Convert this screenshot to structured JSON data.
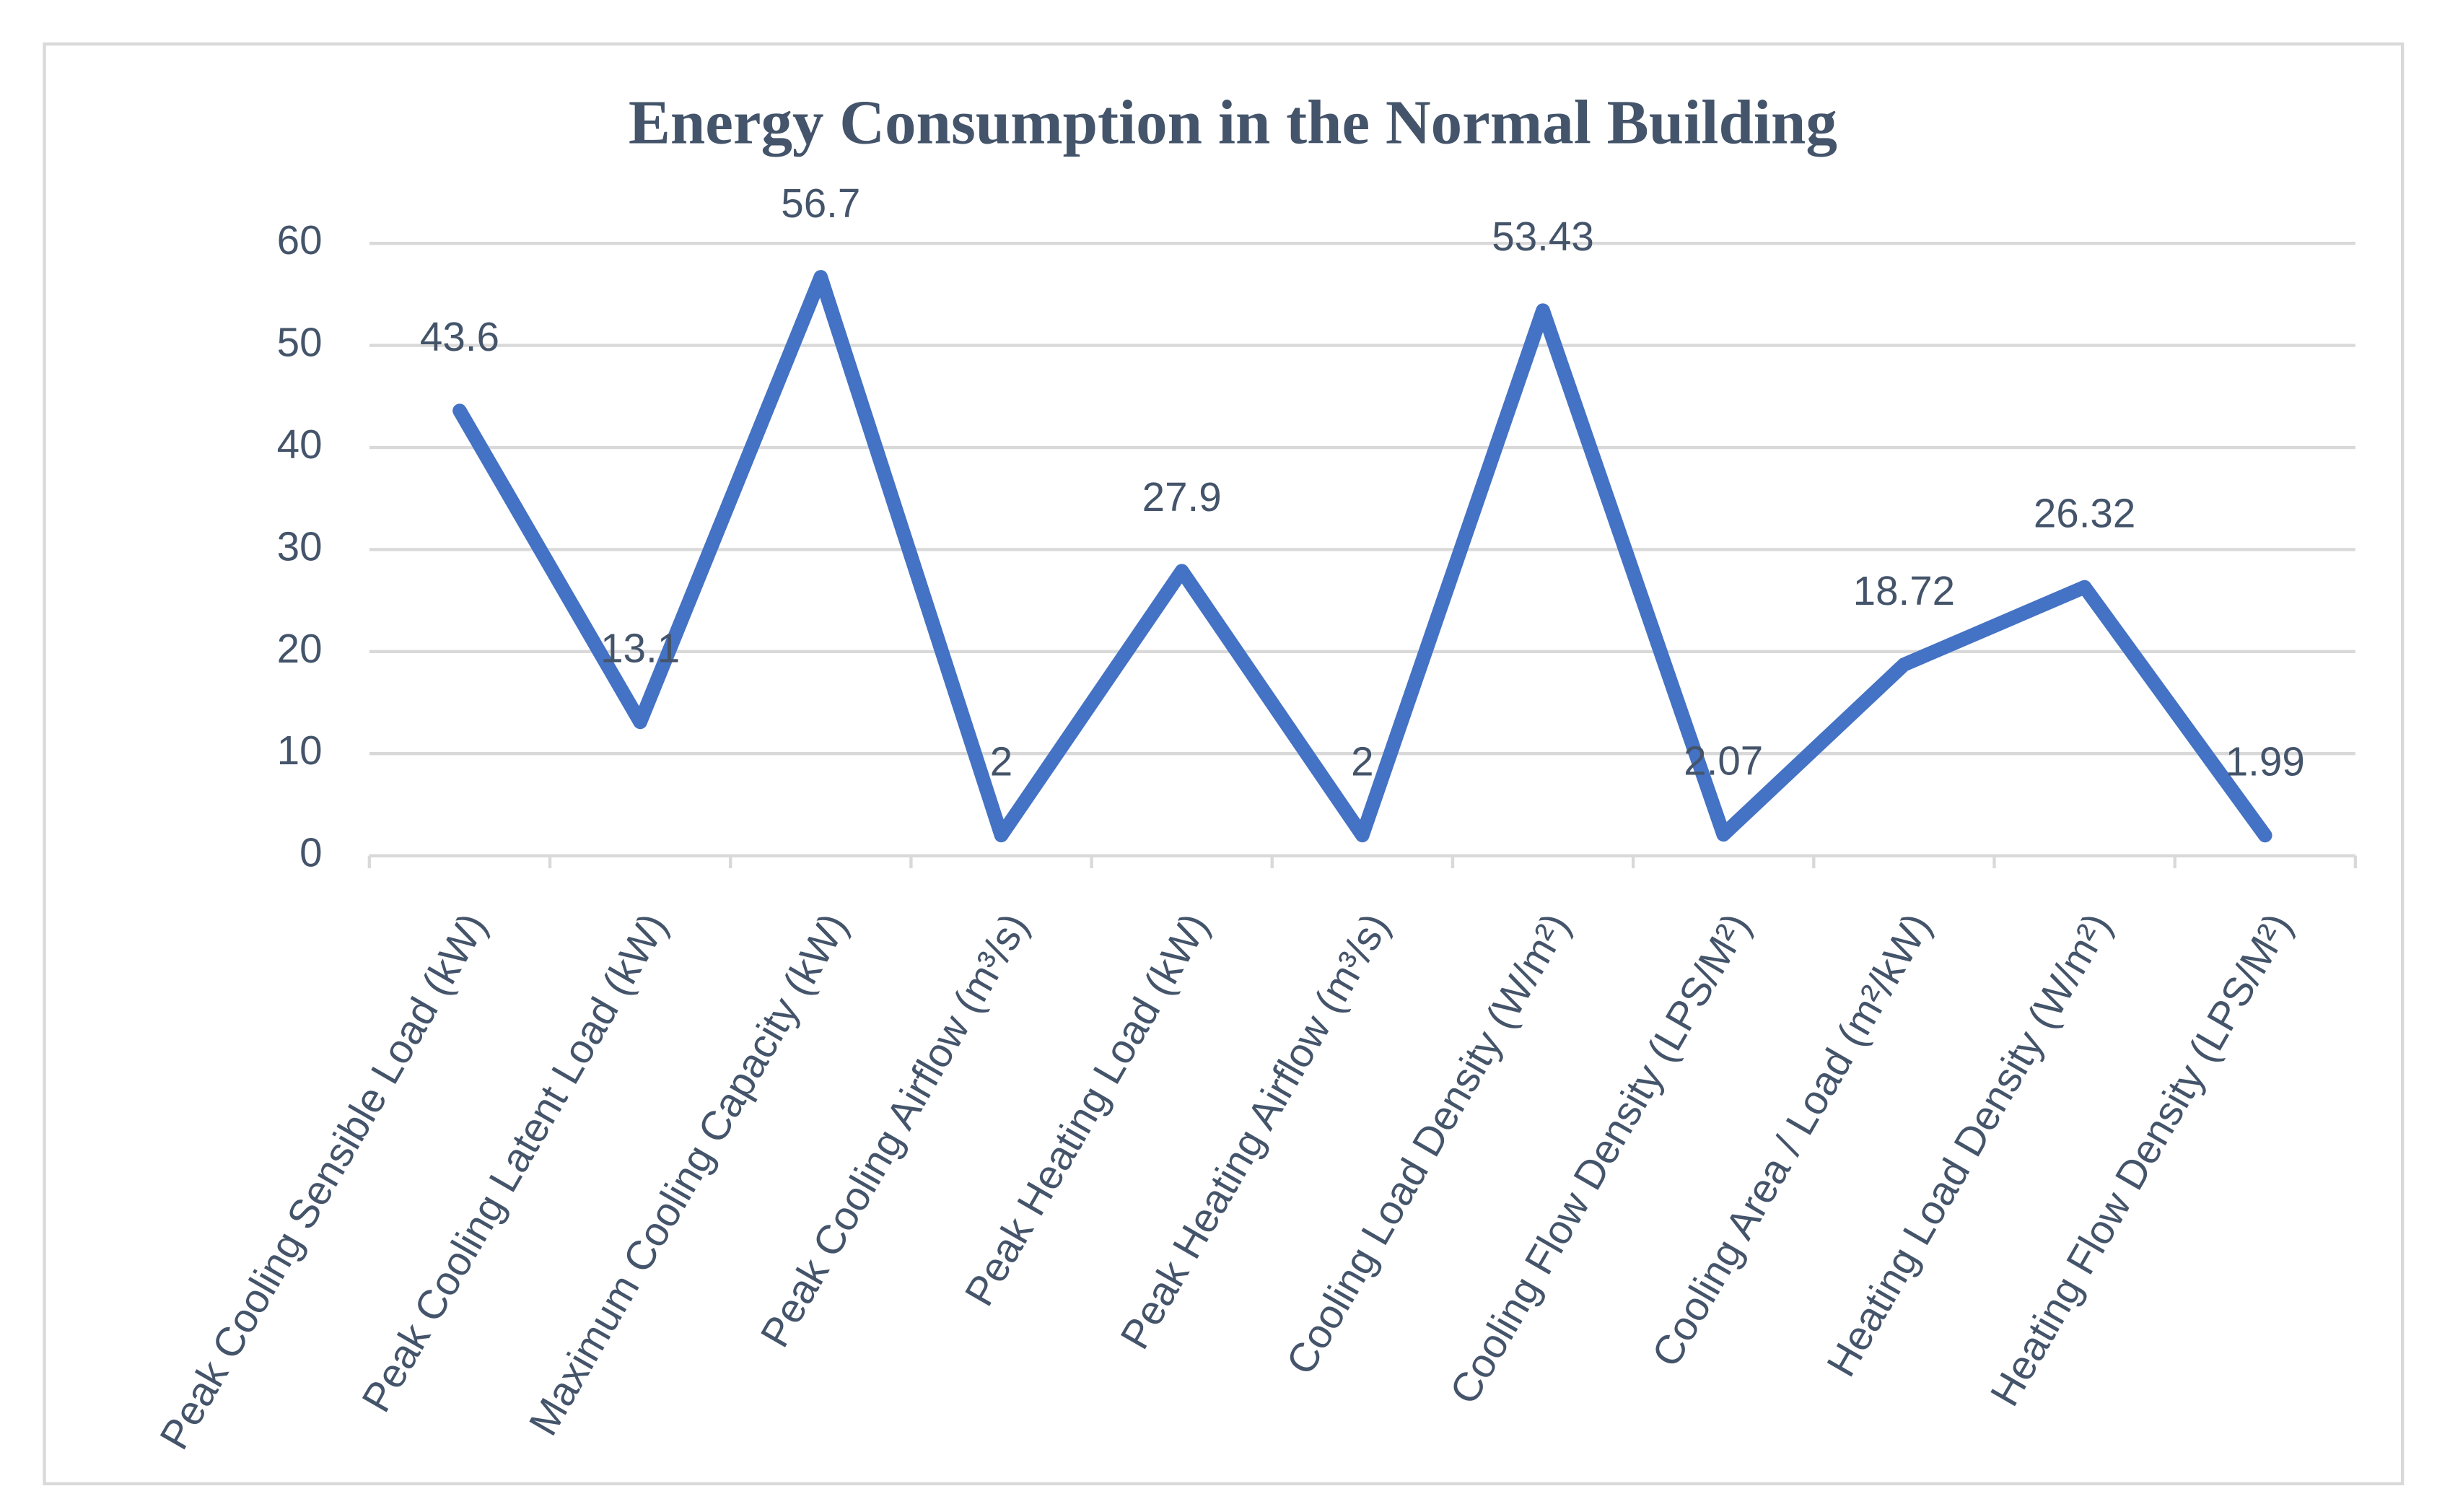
{
  "chart_data": {
    "type": "line",
    "title": "Energy Consumption in the Normal Building",
    "categories": [
      "Peak Cooling Sensible Load (kW)",
      "Peak Cooling Latent Load (kW)",
      "Maximum Cooling Capacity (kW)",
      "Peak Cooling Airflow (m³/s)",
      "Peak Heating Load (kW)",
      "Peak Heating Airflow (m³/s)",
      "Cooling Load Density (W/m²)",
      "Cooling Flow Density (LPS/M²)",
      "Cooling Area / Load (m²/kW)",
      "Heating Load Density (W/m²)",
      "Heating Flow Density (LPS/M²)"
    ],
    "values": [
      43.6,
      13.1,
      56.7,
      2,
      27.9,
      2,
      53.43,
      2.07,
      18.72,
      26.32,
      1.99
    ],
    "color": "#4472c4",
    "ylim": [
      0,
      60
    ],
    "yticks": [
      0,
      10,
      20,
      30,
      40,
      50,
      60
    ],
    "grid": true
  }
}
